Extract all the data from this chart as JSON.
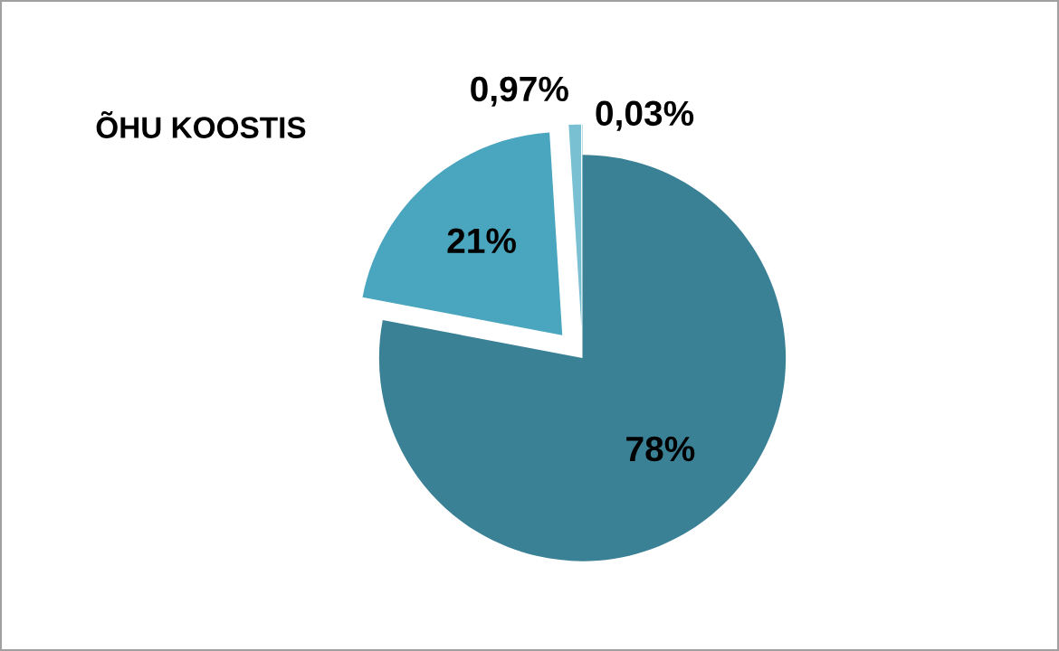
{
  "chart_data": {
    "type": "pie",
    "title": "ÕHU KOOSTIS",
    "categories": [
      null,
      null,
      null,
      null
    ],
    "values": [
      78,
      21,
      0.97,
      0.03
    ],
    "colors": [
      "#3b8196",
      "#4aa5be",
      "#79c0d3",
      "#5fb0c8"
    ],
    "value_labels": [
      "78%",
      "21%",
      "0,97%",
      "0,03%"
    ],
    "legend": false
  }
}
